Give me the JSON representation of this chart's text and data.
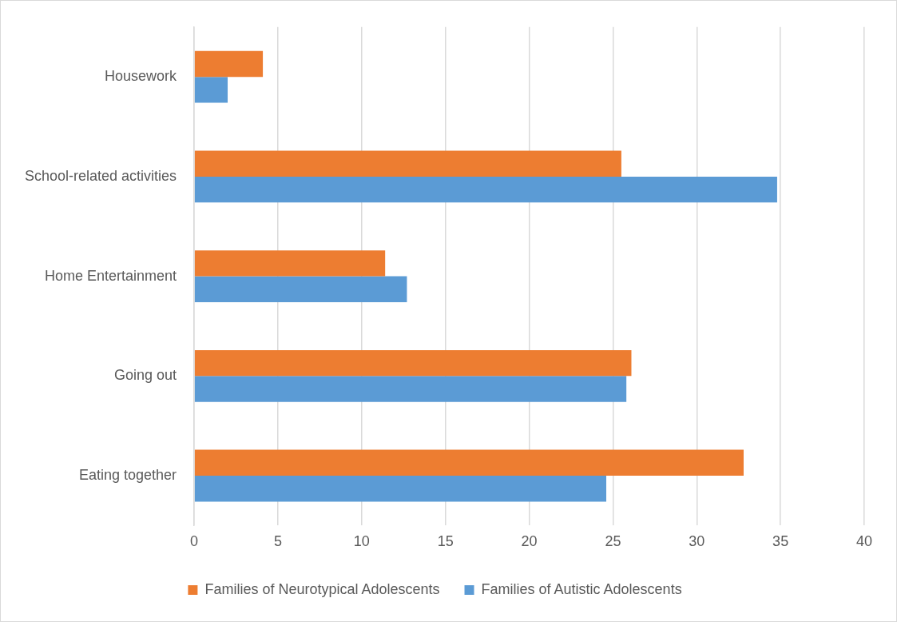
{
  "chart_data": {
    "type": "bar",
    "orientation": "horizontal",
    "categories": [
      "Housework",
      "School-related activities",
      "Home Entertainment",
      "Going out",
      "Eating together"
    ],
    "series": [
      {
        "name": "Families of Neurotypical Adolescents",
        "color": "#ed7d31",
        "values": [
          4.1,
          25.5,
          11.4,
          26.1,
          32.8
        ]
      },
      {
        "name": "Families of Autistic Adolescents",
        "color": "#5b9bd5",
        "values": [
          2.0,
          34.8,
          12.7,
          25.8,
          24.6
        ]
      }
    ],
    "xlim": [
      0,
      40
    ],
    "xticks": [
      0,
      5,
      10,
      15,
      20,
      25,
      30,
      35,
      40
    ],
    "grid": "x",
    "legend": "bottom"
  }
}
